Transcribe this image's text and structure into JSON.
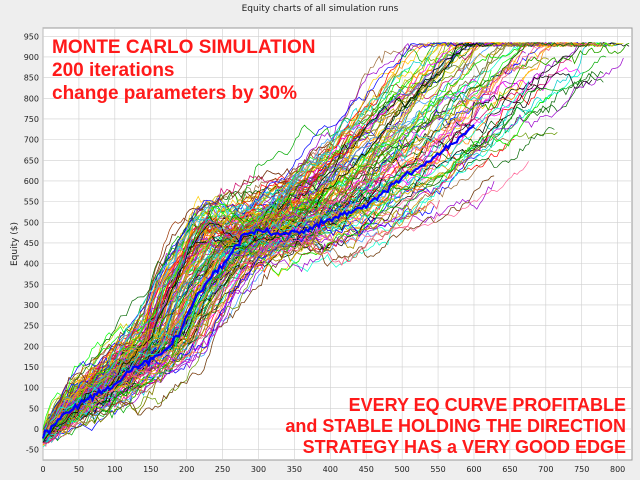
{
  "chart_data": {
    "type": "line",
    "title": "Equity charts of all simulation runs",
    "xlabel": "",
    "ylabel": "Equity ($)",
    "xlim": [
      0,
      820
    ],
    "ylim": [
      -75,
      970
    ],
    "x_ticks": [
      0,
      50,
      100,
      150,
      200,
      250,
      300,
      350,
      400,
      450,
      500,
      550,
      600,
      650,
      700,
      750,
      800
    ],
    "y_ticks": [
      -50,
      0,
      50,
      100,
      150,
      200,
      250,
      300,
      350,
      400,
      450,
      500,
      550,
      600,
      650,
      700,
      750,
      800,
      850,
      900,
      950
    ],
    "grid": true,
    "num_series": 200,
    "series_summary": {
      "average_path": {
        "x": [
          0,
          20,
          50,
          80,
          100,
          130,
          160,
          190,
          200,
          230,
          260,
          280,
          300,
          330,
          360,
          390,
          420,
          450,
          480,
          510,
          540,
          560,
          600
        ],
        "y": [
          -20,
          20,
          60,
          90,
          110,
          150,
          180,
          230,
          280,
          360,
          420,
          470,
          480,
          470,
          480,
          500,
          520,
          540,
          580,
          620,
          650,
          680,
          730
        ]
      },
      "final_equity_range": [
        530,
        935
      ],
      "final_x_range": [
        380,
        820
      ]
    },
    "annotations": {
      "top": [
        "MONTE CARLO SIMULATION",
        "200 iterations",
        "change parameters by 30%"
      ],
      "bottom": [
        "EVERY EQ CURVE PROFITABLE",
        "and STABLE HOLDING THE DIRECTION",
        "STRATEGY HAS a VERY GOOD EDGE"
      ]
    },
    "colors": {
      "annotation": "#ff1a1a",
      "highlight_series": "#0000ff",
      "grid": "#cfcfcf",
      "plot_background": "#ffffff"
    }
  }
}
